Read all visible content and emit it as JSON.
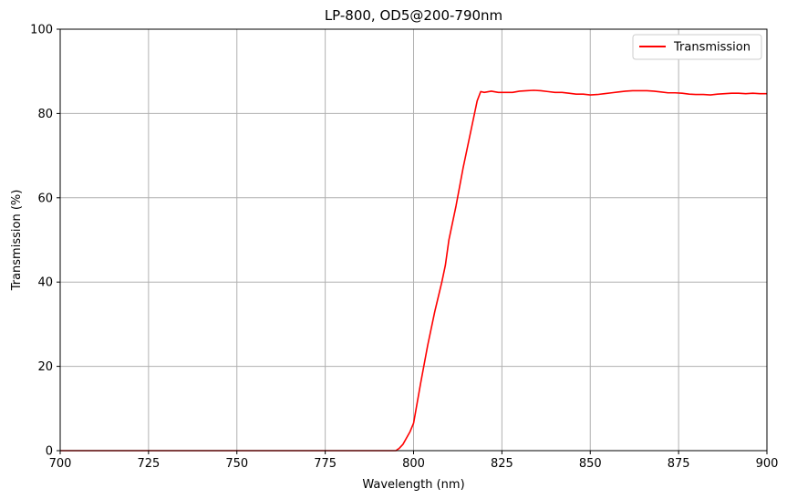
{
  "chart_data": {
    "type": "line",
    "title": "LP-800, OD5@200-790nm",
    "xlabel": "Wavelength (nm)",
    "ylabel": "Transmission (%)",
    "xlim": [
      700,
      900
    ],
    "ylim": [
      0,
      100
    ],
    "xticks": [
      700,
      725,
      750,
      775,
      800,
      825,
      850,
      875,
      900
    ],
    "yticks": [
      0,
      20,
      40,
      60,
      80,
      100
    ],
    "grid": true,
    "legend": "top-right",
    "series": [
      {
        "name": "Transmission",
        "color": "#ff0000",
        "x": [
          700,
          790,
          795,
          796,
          797,
          798,
          799,
          800,
          802,
          804,
          806,
          808,
          809,
          810,
          812,
          814,
          816,
          817,
          818,
          819,
          820,
          822,
          824,
          826,
          828,
          830,
          832,
          834,
          836,
          838,
          840,
          842,
          844,
          846,
          848,
          850,
          852,
          854,
          856,
          858,
          860,
          862,
          864,
          866,
          868,
          870,
          872,
          874,
          876,
          878,
          880,
          882,
          884,
          886,
          888,
          890,
          892,
          894,
          896,
          898,
          900
        ],
        "y": [
          0,
          0,
          0,
          0.6,
          1.5,
          3,
          4.5,
          6.5,
          16,
          25,
          33,
          40,
          44,
          50,
          58,
          67,
          75,
          79,
          83,
          85.2,
          85,
          85.3,
          85,
          85,
          85,
          85.3,
          85.4,
          85.5,
          85.4,
          85.2,
          85.0,
          85.0,
          84.8,
          84.6,
          84.6,
          84.4,
          84.5,
          84.7,
          84.9,
          85.1,
          85.3,
          85.4,
          85.4,
          85.4,
          85.3,
          85.1,
          84.9,
          84.9,
          84.8,
          84.6,
          84.5,
          84.5,
          84.4,
          84.6,
          84.7,
          84.8,
          84.8,
          84.7,
          84.8,
          84.7,
          84.7
        ]
      }
    ]
  }
}
